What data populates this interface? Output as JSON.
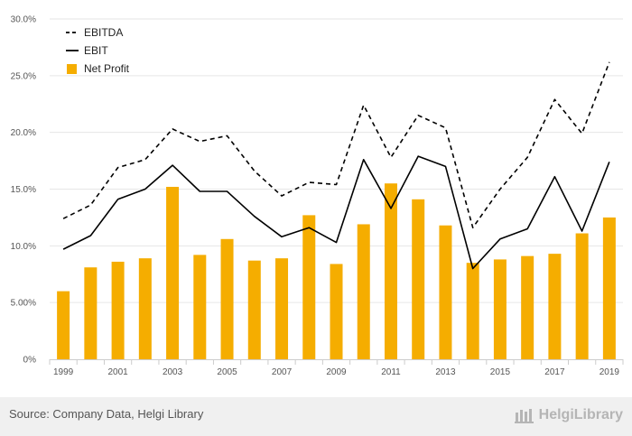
{
  "chart_data": {
    "type": "bar",
    "x": [
      1999,
      2000,
      2001,
      2002,
      2003,
      2004,
      2005,
      2006,
      2007,
      2008,
      2009,
      2010,
      2011,
      2012,
      2013,
      2014,
      2015,
      2016,
      2017,
      2018,
      2019
    ],
    "x_tick_labels": [
      "1999",
      "2001",
      "2003",
      "2005",
      "2007",
      "2009",
      "2011",
      "2013",
      "2015",
      "2017",
      "2019"
    ],
    "y_tick_labels": [
      "0%",
      "5.00%",
      "10.0%",
      "15.0%",
      "20.0%",
      "25.0%",
      "30.0%"
    ],
    "ylim": [
      0,
      30
    ],
    "grid": "horizontal",
    "legend_position": "top-left",
    "series": [
      {
        "name": "EBITDA",
        "kind": "line",
        "style": "dashed",
        "color": "#000000",
        "values": [
          12.4,
          13.6,
          16.9,
          17.6,
          20.3,
          19.2,
          19.7,
          16.6,
          14.4,
          15.6,
          15.4,
          22.4,
          17.8,
          21.5,
          20.4,
          11.6,
          15.0,
          17.8,
          22.9,
          19.9,
          26.2
        ]
      },
      {
        "name": "EBIT",
        "kind": "line",
        "style": "solid",
        "color": "#000000",
        "values": [
          9.7,
          10.9,
          14.1,
          15.0,
          17.1,
          14.8,
          14.8,
          12.6,
          10.8,
          11.6,
          10.3,
          17.6,
          13.3,
          17.9,
          17.0,
          8.0,
          10.6,
          11.5,
          16.1,
          11.3,
          17.4
        ]
      },
      {
        "name": "Net Profit",
        "kind": "bar",
        "color": "#f5ad00",
        "values": [
          6.0,
          8.1,
          8.6,
          8.9,
          15.2,
          9.2,
          10.6,
          8.7,
          8.9,
          12.7,
          8.4,
          11.9,
          15.5,
          14.1,
          11.8,
          8.5,
          8.8,
          9.1,
          9.3,
          11.1,
          12.5
        ]
      }
    ]
  },
  "footer": {
    "source": "Source: Company Data, Helgi Library",
    "brand": "HelgiLibrary"
  }
}
